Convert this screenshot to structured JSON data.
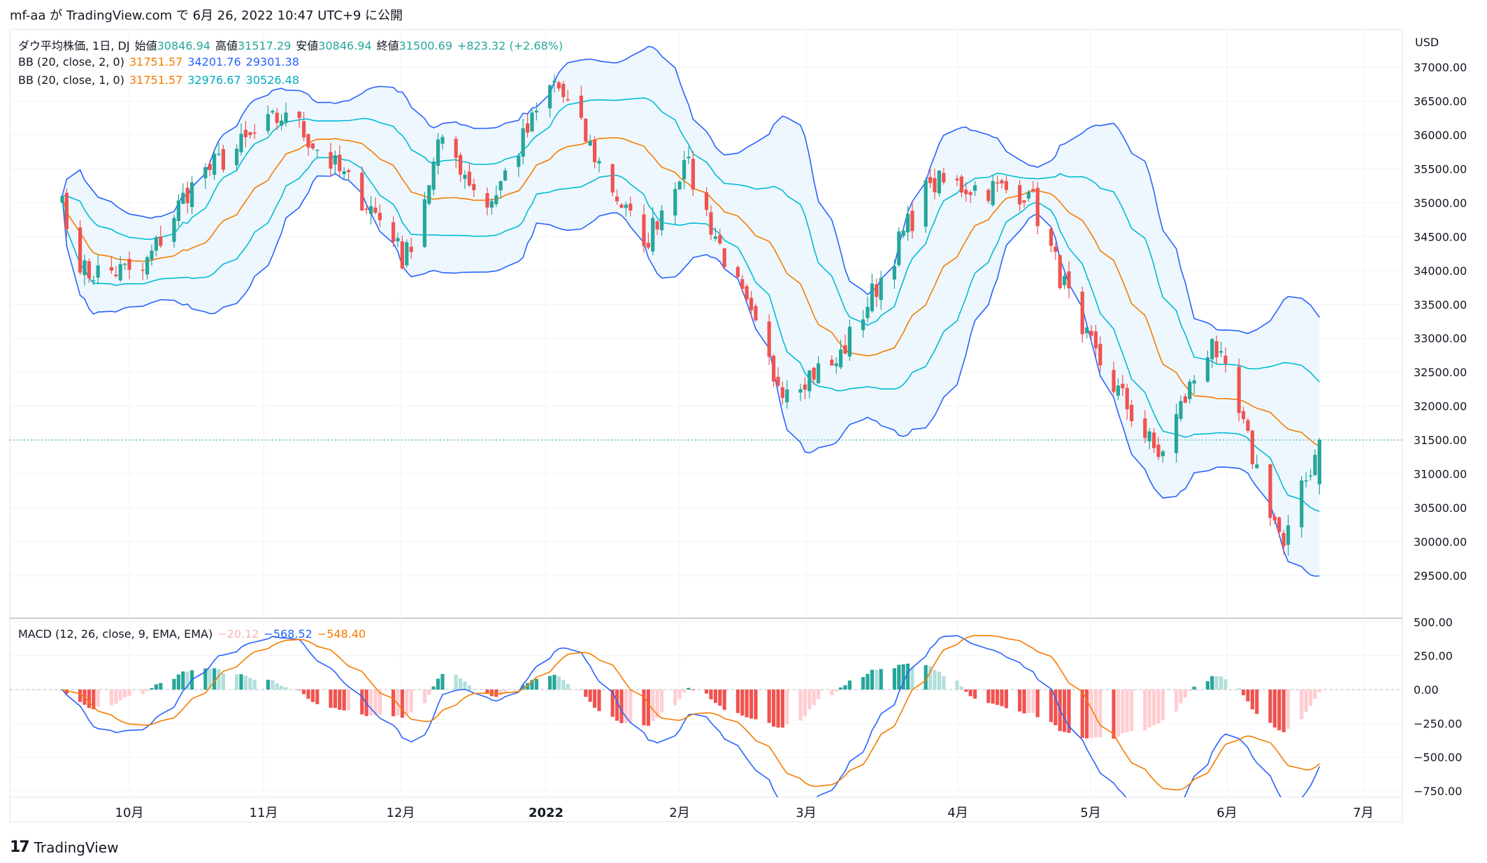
{
  "header": {
    "text": "mf-aa が TradingView.com で 6月 26, 2022 10:47 UTC+9 に公開"
  },
  "footer": {
    "brand": "TradingView"
  },
  "legend": {
    "symbol": "ダウ平均株価, 1日, DJ",
    "o_label": "始値",
    "o": "30846.94",
    "h_label": "高値",
    "h": "31517.29",
    "l_label": "安値",
    "l": "30846.94",
    "c_label": "終値",
    "c": "31500.69",
    "chg": "+823.32 (+2.68%)",
    "bb2_label": "BB (20, close, 2, 0)",
    "bb2_basis": "31751.57",
    "bb2_upper": "34201.76",
    "bb2_lower": "29301.38",
    "bb1_label": "BB (20, close, 1, 0)",
    "bb1_basis": "31751.57",
    "bb1_upper": "32976.67",
    "bb1_lower": "30526.48",
    "macd_label": "MACD (12, 26, close, 9, EMA, EMA)",
    "macd_hist": "−20.12",
    "macd_line": "−568.52",
    "macd_signal": "−548.40"
  },
  "colors": {
    "up": "#26a69a",
    "down": "#ef5350",
    "bb_outer": "#2962ff",
    "bb_inner": "#00bcd4",
    "basis": "#f57c00",
    "fill": "#e3f2fd",
    "macd": "#2962ff",
    "signal": "#f57c00",
    "hist_up_strong": "#26a69a",
    "hist_up_weak": "#b2dfdb",
    "hist_down_strong": "#ef5350",
    "hist_down_weak": "#ffcdd2"
  },
  "chart_data": [
    {
      "type": "candlestick",
      "title": "ダウ平均株価, 1日, DJ",
      "ylabel": "USD",
      "ylim": [
        29450,
        37500
      ],
      "y_ticks": [
        "37000.00",
        "36500.00",
        "36000.00",
        "35500.00",
        "35000.00",
        "34500.00",
        "34000.00",
        "33500.00",
        "33000.00",
        "32500.00",
        "32000.00",
        "31500.00",
        "31000.00",
        "30500.00",
        "30000.00",
        "29500.00"
      ],
      "x_ticks": [
        "10月",
        "11月",
        "12月",
        "2022",
        "2月",
        "3月",
        "4月",
        "5月",
        "6月",
        "7月"
      ],
      "last_price": 31500.69,
      "close_keypoints": [
        {
          "date": "2021-09-16",
          "close": 35100
        },
        {
          "date": "2021-09-20",
          "close": 33970
        },
        {
          "date": "2021-10-04",
          "close": 34000
        },
        {
          "date": "2021-10-15",
          "close": 35300
        },
        {
          "date": "2021-11-05",
          "close": 36330
        },
        {
          "date": "2021-11-30",
          "close": 34480
        },
        {
          "date": "2021-12-01",
          "close": 34030
        },
        {
          "date": "2021-12-10",
          "close": 35970
        },
        {
          "date": "2021-12-20",
          "close": 34930
        },
        {
          "date": "2022-01-04",
          "close": 36800
        },
        {
          "date": "2022-01-24",
          "close": 34360
        },
        {
          "date": "2022-02-02",
          "close": 35630
        },
        {
          "date": "2022-02-23",
          "close": 32300
        },
        {
          "date": "2022-03-08",
          "close": 32630
        },
        {
          "date": "2022-03-29",
          "close": 35290
        },
        {
          "date": "2022-04-20",
          "close": 35160
        },
        {
          "date": "2022-05-02",
          "close": 33060
        },
        {
          "date": "2022-05-19",
          "close": 31250
        },
        {
          "date": "2022-05-31",
          "close": 32990
        },
        {
          "date": "2022-06-16",
          "close": 29930
        },
        {
          "date": "2022-06-24",
          "close": 31500
        }
      ],
      "bollinger": {
        "bb2": {
          "basis": 31751.57,
          "upper": 34201.76,
          "lower": 29301.38
        },
        "bb1": {
          "basis": 31751.57,
          "upper": 32976.67,
          "lower": 30526.48
        }
      }
    },
    {
      "type": "macd",
      "title": "MACD (12, 26, close, 9, EMA, EMA)",
      "ylim": [
        -820,
        520
      ],
      "y_ticks": [
        "500.00",
        "250.00",
        "0.00",
        "−250.00",
        "−500.00",
        "−750.00"
      ],
      "last": {
        "histogram": -20.12,
        "macd": -568.52,
        "signal": -548.4
      }
    }
  ]
}
